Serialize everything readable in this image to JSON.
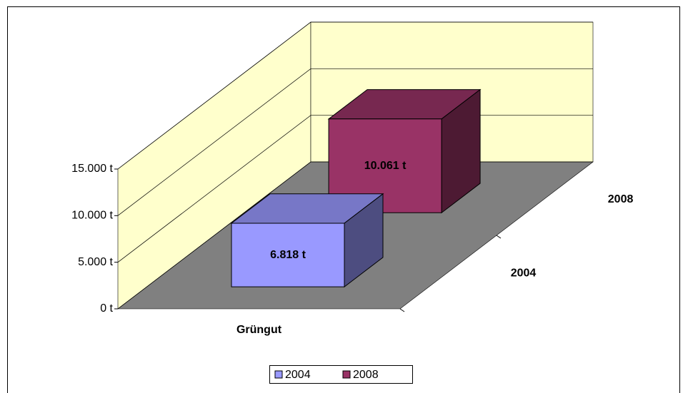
{
  "chart_data": {
    "type": "bar3d",
    "categories": [
      "Grüngut"
    ],
    "series": [
      {
        "name": "2004",
        "color": "#9999ff",
        "values": [
          6818
        ],
        "value_labels": [
          "6.818 t"
        ]
      },
      {
        "name": "2008",
        "color": "#993366",
        "values": [
          10061
        ],
        "value_labels": [
          "10.061 t"
        ]
      }
    ],
    "ylim": [
      0,
      15000
    ],
    "yticks": [
      {
        "value": 0,
        "label": "0 t"
      },
      {
        "value": 5000,
        "label": "5.000 t"
      },
      {
        "value": 10000,
        "label": "10.000 t"
      },
      {
        "value": 15000,
        "label": "15.000 t"
      }
    ],
    "grid": true,
    "legend": "bottom"
  }
}
